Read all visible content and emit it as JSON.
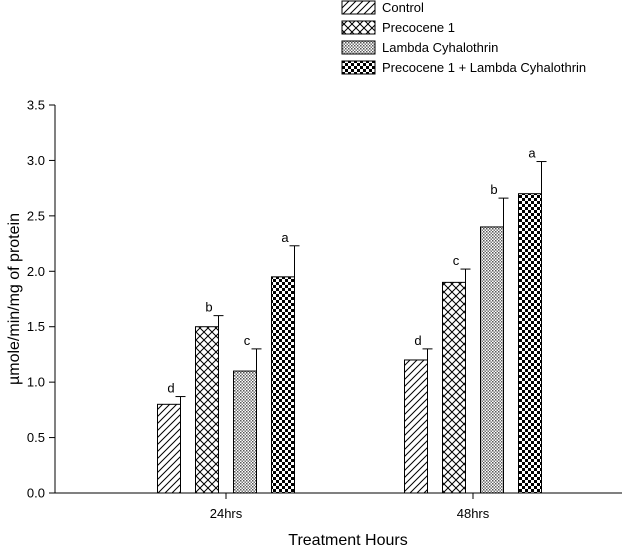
{
  "chart_data": {
    "type": "bar",
    "title": "",
    "xlabel": "Treatment Hours",
    "ylabel": "µmole/min/mg of protein",
    "ylim": [
      0,
      3.5
    ],
    "yticks": [
      "0.0",
      "0.5",
      "1.0",
      "1.5",
      "2.0",
      "2.5",
      "3.0",
      "3.5"
    ],
    "categories": [
      "24hrs",
      "48hrs"
    ],
    "legend_position": "top-right",
    "series": [
      {
        "name": "Control",
        "pattern": "diagonal-hatch",
        "values": [
          0.8,
          1.2
        ],
        "errors": [
          0.07,
          0.1
        ],
        "letters": [
          "d",
          "d"
        ]
      },
      {
        "name": "Precocene 1",
        "pattern": "crosshatch",
        "values": [
          1.5,
          1.9
        ],
        "errors": [
          0.1,
          0.12
        ],
        "letters": [
          "b",
          "c"
        ]
      },
      {
        "name": "Lambda Cyhalothrin",
        "pattern": "fine-dots",
        "values": [
          1.1,
          2.4
        ],
        "errors": [
          0.2,
          0.26
        ],
        "letters": [
          "c",
          "b"
        ]
      },
      {
        "name": "Precocene 1 + Lambda Cyhalothrin",
        "pattern": "checkerboard",
        "values": [
          1.95,
          2.7
        ],
        "errors": [
          0.28,
          0.29
        ],
        "letters": [
          "a",
          "a"
        ]
      }
    ]
  }
}
